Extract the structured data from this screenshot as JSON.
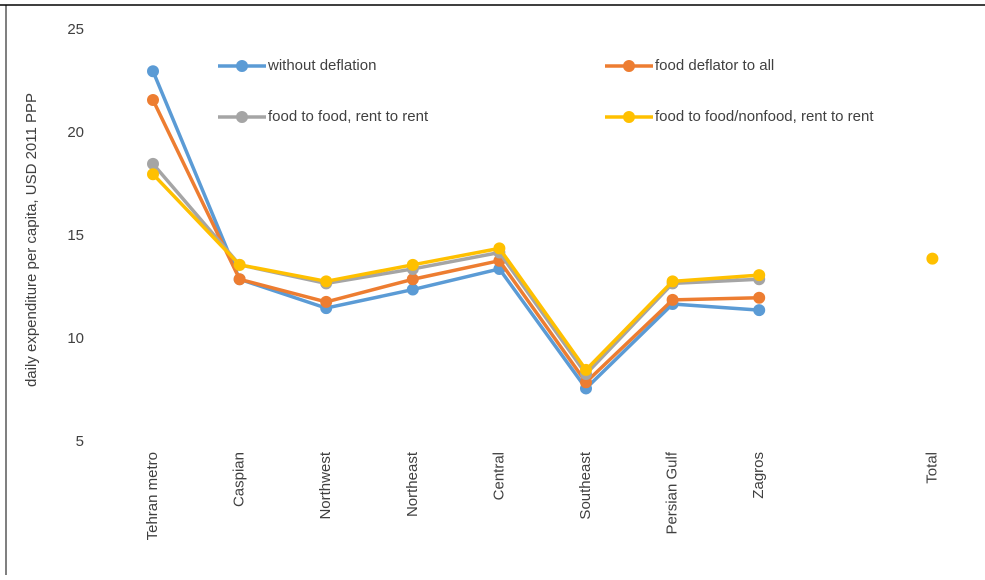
{
  "chart_data": {
    "type": "line",
    "y_label": "daily expenditure per capita, USD 2011 PPP",
    "categories": [
      "Tehran metro",
      "Caspian",
      "Northwest",
      "Northeast",
      "Central",
      "Southeast",
      "Persian Gulf",
      "Zagros",
      null,
      "Total"
    ],
    "series": [
      {
        "name": "without deflation",
        "color": "#5b9bd5",
        "values": [
          23.0,
          12.9,
          11.5,
          12.4,
          13.4,
          7.6,
          11.7,
          11.4,
          null,
          null
        ]
      },
      {
        "name": "food deflator to all",
        "color": "#ed7d31",
        "values": [
          21.6,
          12.9,
          11.8,
          12.9,
          13.8,
          7.9,
          11.9,
          12.0,
          null,
          null
        ]
      },
      {
        "name": "food to food, rent to rent",
        "color": "#a5a5a5",
        "values": [
          18.5,
          13.6,
          12.7,
          13.4,
          14.2,
          8.3,
          12.7,
          12.9,
          null,
          null
        ]
      },
      {
        "name": "food to food/nonfood, rent to rent",
        "color": "#ffc000",
        "values": [
          18.0,
          13.6,
          12.8,
          13.6,
          14.4,
          8.5,
          12.8,
          13.1,
          null,
          13.9
        ]
      }
    ],
    "ylim": [
      5,
      25
    ],
    "yticks": [
      5,
      10,
      15,
      20,
      25
    ],
    "grid": false
  }
}
